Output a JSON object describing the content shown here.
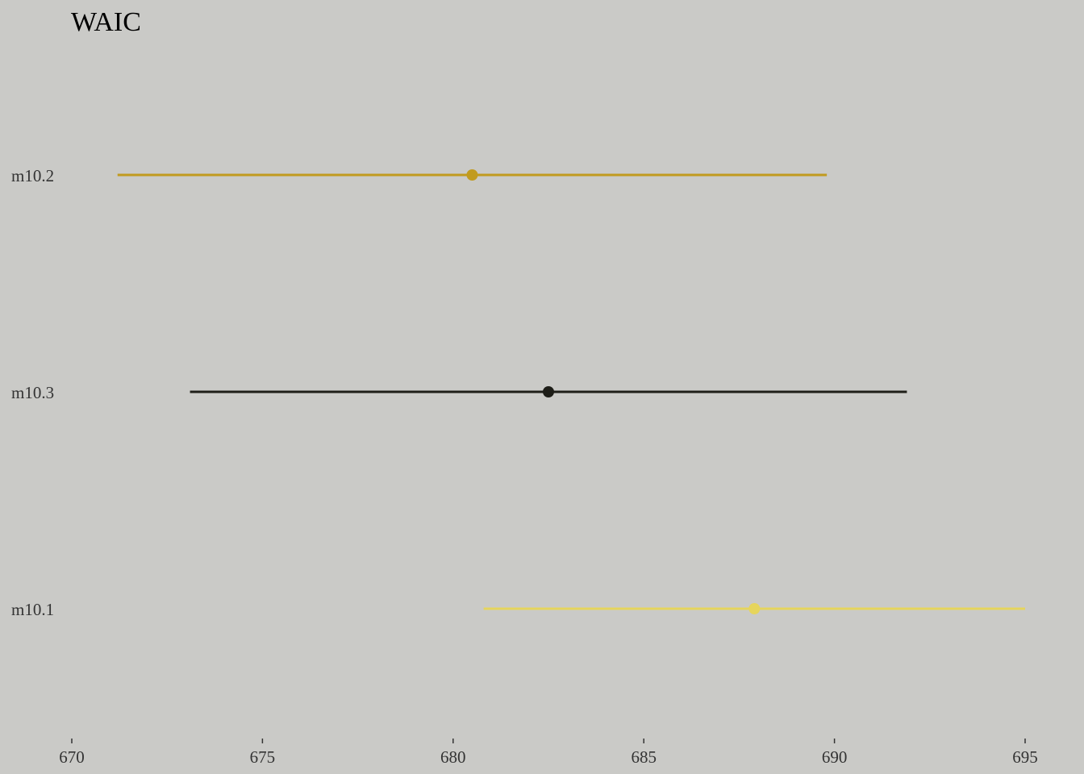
{
  "chart_data": {
    "type": "scatter",
    "title": "WAIC",
    "xlabel": "",
    "ylabel": "",
    "xlim": [
      670,
      695
    ],
    "x_ticks": [
      670,
      675,
      680,
      685,
      690,
      695
    ],
    "x_tick_labels": [
      "670",
      "675",
      "680",
      "685",
      "690",
      "695"
    ],
    "grid": false,
    "legend": "none",
    "categories": [
      "m10.2",
      "m10.3",
      "m10.1"
    ],
    "series": [
      {
        "category": "m10.2",
        "waic": 680.5,
        "lower": 671.2,
        "upper": 689.8,
        "color": "#c19b1f"
      },
      {
        "category": "m10.3",
        "waic": 682.5,
        "lower": 673.1,
        "upper": 691.9,
        "color": "#1e1e18"
      },
      {
        "category": "m10.1",
        "waic": 687.9,
        "lower": 680.8,
        "upper": 695.0,
        "color": "#e6d55c"
      }
    ],
    "tick_color": "#333333",
    "background": "#cacac7"
  }
}
